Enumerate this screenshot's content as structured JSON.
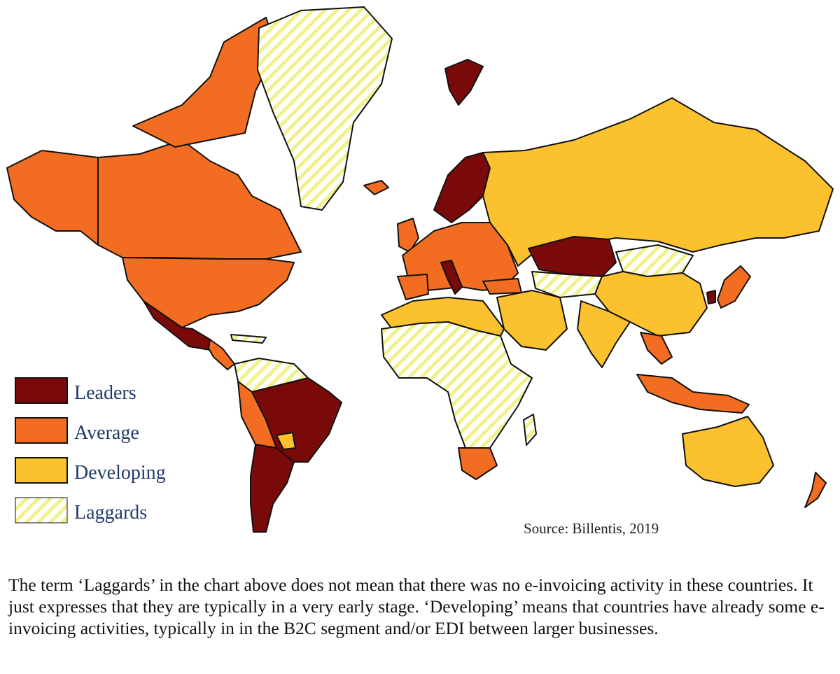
{
  "colors": {
    "leaders": "#7a0a0a",
    "average": "#f26d21",
    "developing": "#fcc12e",
    "laggards_base": "#ffffff",
    "laggards_stripe": "#f2f08a"
  },
  "legend": [
    {
      "key": "leaders",
      "label": "Leaders"
    },
    {
      "key": "average",
      "label": "Average"
    },
    {
      "key": "developing",
      "label": "Developing"
    },
    {
      "key": "laggards",
      "label": "Laggards"
    }
  ],
  "source": "Source: Billentis,  2019",
  "caption": "The term ‘Laggards’ in the chart above does not mean that there was no e-invoicing activity in these countries. It just expresses that they are typically in a very early stage. ‘Developing’ means that countries have already some e-invoicing activities, typically in in the B2C segment and/or EDI between larger businesses.",
  "regions": [
    {
      "name": "Canada",
      "category": "average"
    },
    {
      "name": "Alaska",
      "category": "average"
    },
    {
      "name": "Greenland",
      "category": "laggards"
    },
    {
      "name": "Iceland",
      "category": "average"
    },
    {
      "name": "USA",
      "category": "average"
    },
    {
      "name": "Mexico",
      "category": "leaders"
    },
    {
      "name": "Central America",
      "category": "average"
    },
    {
      "name": "Brazil",
      "category": "leaders"
    },
    {
      "name": "Argentina & Chile",
      "category": "leaders"
    },
    {
      "name": "Paraguay",
      "category": "developing"
    },
    {
      "name": "Northern South America",
      "category": "laggards"
    },
    {
      "name": "Scandinavia",
      "category": "leaders"
    },
    {
      "name": "Western & Central Europe",
      "category": "average"
    },
    {
      "name": "Italy",
      "category": "leaders"
    },
    {
      "name": "Russia",
      "category": "developing"
    },
    {
      "name": "Kazakhstan",
      "category": "leaders"
    },
    {
      "name": "Mongolia",
      "category": "laggards"
    },
    {
      "name": "China",
      "category": "developing"
    },
    {
      "name": "India",
      "category": "developing"
    },
    {
      "name": "South Korea",
      "category": "leaders"
    },
    {
      "name": "Japan",
      "category": "average"
    },
    {
      "name": "North Africa",
      "category": "developing"
    },
    {
      "name": "Sub-Saharan Africa",
      "category": "laggards"
    },
    {
      "name": "South Africa",
      "category": "average"
    },
    {
      "name": "Southeast Asia",
      "category": "average"
    },
    {
      "name": "Australia",
      "category": "developing"
    },
    {
      "name": "New Zealand",
      "category": "average"
    },
    {
      "name": "Svalbard",
      "category": "leaders"
    }
  ]
}
